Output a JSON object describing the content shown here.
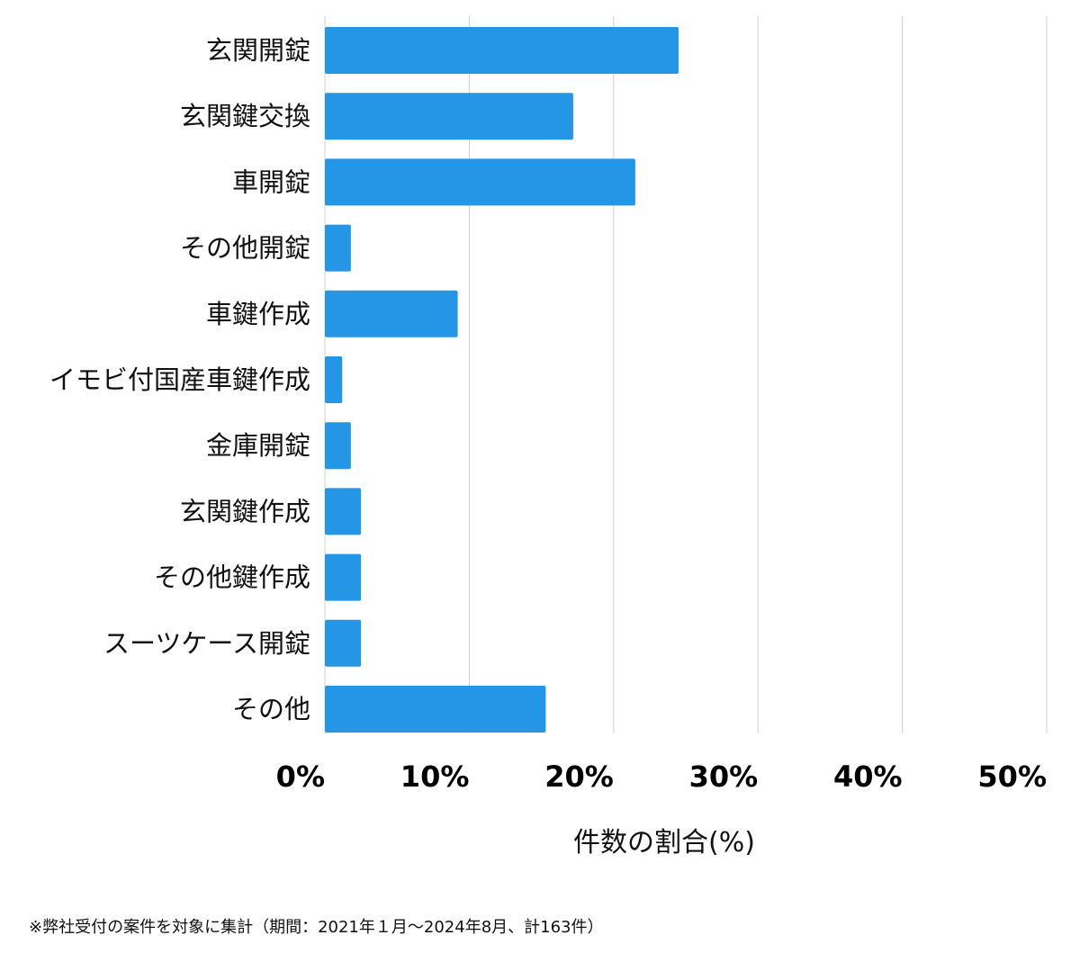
{
  "chart_data": {
    "type": "bar",
    "orientation": "horizontal",
    "categories": [
      "玄関開錠",
      "玄関鍵交換",
      "車開錠",
      "その他開錠",
      "車鍵作成",
      "イモビ付国産車鍵作成",
      "金庫開錠",
      "玄関鍵作成",
      "その他鍵作成",
      "スーツケース開錠",
      "その他"
    ],
    "values": [
      24.5,
      17.2,
      21.5,
      1.8,
      9.2,
      1.2,
      1.8,
      2.5,
      2.5,
      2.5,
      15.3
    ],
    "xlim": [
      0,
      50
    ],
    "xticks": [
      0,
      10,
      20,
      30,
      40,
      50
    ],
    "xtick_labels": [
      "0%",
      "10%",
      "20%",
      "30%",
      "40%",
      "50%"
    ],
    "xlabel": "件数の割合(%)",
    "ylabel": "",
    "grid": true,
    "colors": {
      "bar": "#2595e6",
      "grid": "#d0d0d0"
    }
  },
  "footnote": "※弊社受付の案件を対象に集計（期間：2021年１月～2024年8月、計163件）"
}
